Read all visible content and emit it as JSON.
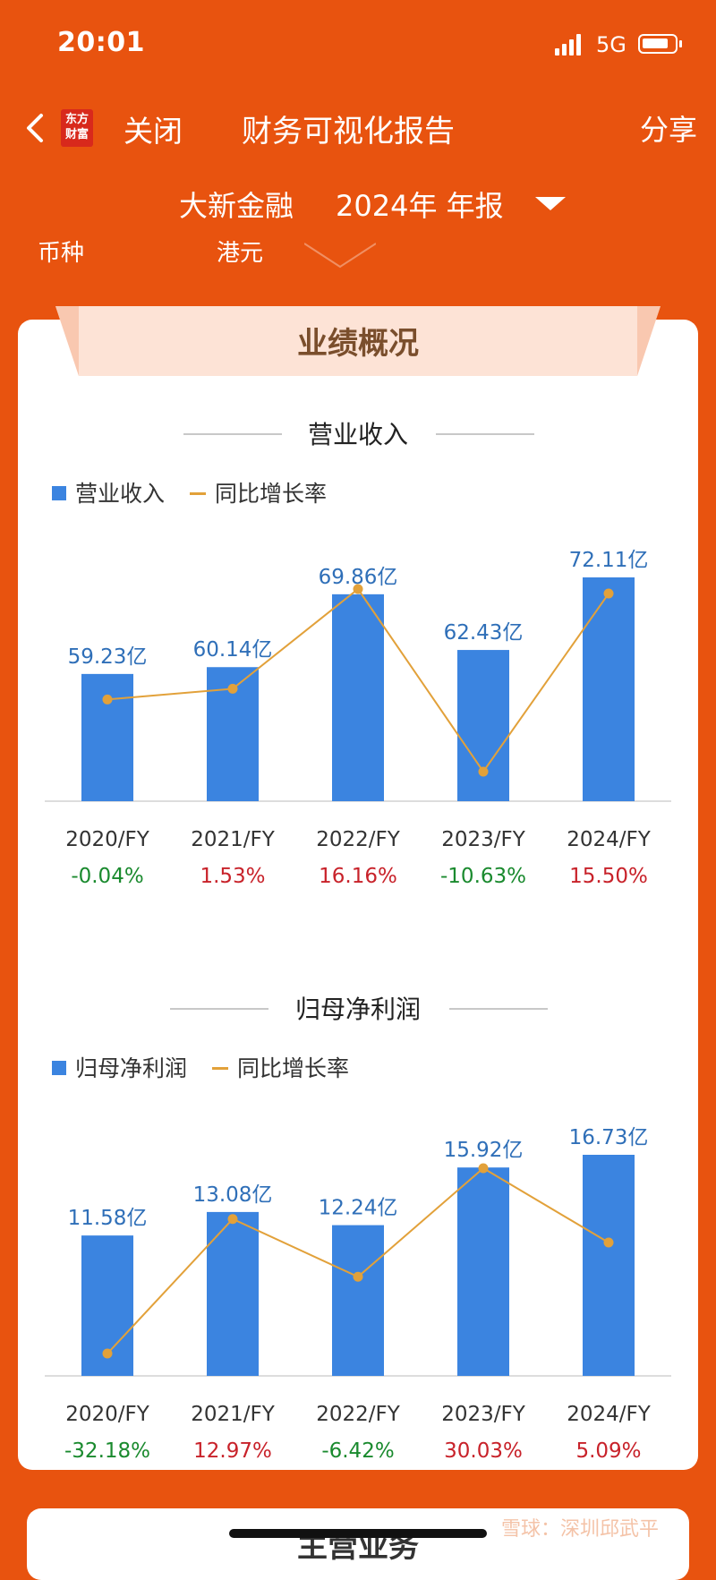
{
  "status_bar": {
    "time": "20:01",
    "network": "5G"
  },
  "nav": {
    "logo_text": "东方财富",
    "close_label": "关闭",
    "title": "财务可视化报告",
    "share_label": "分享"
  },
  "report": {
    "company": "大新金融",
    "period": "2024年 年报",
    "currency_label": "币种",
    "currency_value": "港元"
  },
  "section_title": "业绩概况",
  "colors": {
    "brand_orange": "#e8530f",
    "bar_blue": "#3b84e0",
    "line_orange": "#e2a13a",
    "positive_red": "#c8222a",
    "negative_green": "#1a8a2e",
    "value_label_blue": "#2f6fb8"
  },
  "chart_data": [
    {
      "type": "bar",
      "title": "营业收入",
      "categories": [
        "2020/FY",
        "2021/FY",
        "2022/FY",
        "2023/FY",
        "2024/FY"
      ],
      "series": [
        {
          "name": "营业收入",
          "values": [
            59.23,
            60.14,
            69.86,
            62.43,
            72.11
          ],
          "labels": [
            "59.23亿",
            "60.14亿",
            "69.86亿",
            "62.43亿",
            "72.11亿"
          ]
        },
        {
          "name": "同比增长率",
          "values": [
            -0.04,
            1.53,
            16.16,
            -10.63,
            15.5
          ],
          "labels": [
            "-0.04%",
            "1.53%",
            "16.16%",
            "-10.63%",
            "15.50%"
          ]
        }
      ]
    },
    {
      "type": "bar",
      "title": "归母净利润",
      "categories": [
        "2020/FY",
        "2021/FY",
        "2022/FY",
        "2023/FY",
        "2024/FY"
      ],
      "series": [
        {
          "name": "归母净利润",
          "values": [
            11.58,
            13.08,
            12.24,
            15.92,
            16.73
          ],
          "labels": [
            "11.58亿",
            "13.08亿",
            "12.24亿",
            "15.92亿",
            "16.73亿"
          ]
        },
        {
          "name": "同比增长率",
          "values": [
            -32.18,
            12.97,
            -6.42,
            30.03,
            5.09
          ],
          "labels": [
            "-32.18%",
            "12.97%",
            "-6.42%",
            "30.03%",
            "5.09%"
          ]
        }
      ]
    }
  ],
  "next_section_title": "主营业务",
  "watermark": "雪球：深圳邱武平"
}
